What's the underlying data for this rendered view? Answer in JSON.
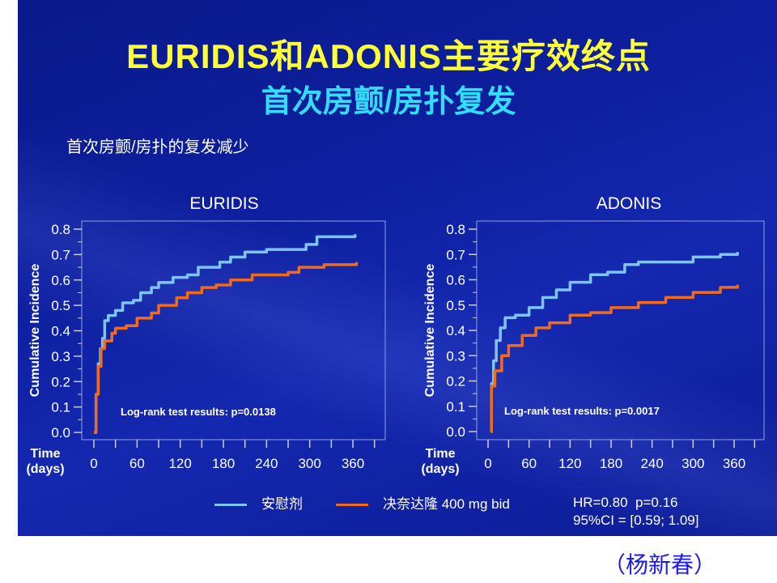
{
  "title": "EURIDIS和ADONIS主要疗效终点",
  "subtitle": "首次房颤/房扑复发",
  "section_text": "首次房颤/房扑的复发减少",
  "legend": [
    {
      "label": "安慰剂",
      "color": "#7fc4f0"
    },
    {
      "label": "决奈达隆 400 mg bid",
      "color": "#f26a1b"
    }
  ],
  "stats": {
    "hr_line": "HR=0.80  p=0.16",
    "ci_line": "95%CI = [0.59; 1.09]"
  },
  "author": "（杨新春）",
  "chart_data": [
    {
      "type": "line",
      "title": "EURIDIS",
      "ylabel": "Cumulative Incidence",
      "xlabel": "Time\n(days)",
      "xlabel_lines": [
        "Time",
        "(days)"
      ],
      "xlim": [
        0,
        390
      ],
      "ylim": [
        0,
        0.8
      ],
      "xticks": [
        0,
        60,
        120,
        180,
        240,
        300,
        360
      ],
      "yticks": [
        "0.0",
        "0.1",
        "0.2",
        "0.3",
        "0.4",
        "0.5",
        "0.6",
        "0.7",
        "0.8"
      ],
      "annotation": "Log-rank test results: p=0.0138",
      "series": [
        {
          "name": "安慰剂",
          "color": "#7fc4f0",
          "x": [
            0,
            3,
            6,
            9,
            12,
            15,
            20,
            30,
            40,
            55,
            65,
            80,
            90,
            110,
            130,
            145,
            175,
            190,
            210,
            240,
            270,
            295,
            310,
            355,
            363
          ],
          "y": [
            0,
            0.15,
            0.27,
            0.33,
            0.37,
            0.44,
            0.46,
            0.48,
            0.51,
            0.52,
            0.55,
            0.57,
            0.59,
            0.61,
            0.62,
            0.65,
            0.67,
            0.69,
            0.71,
            0.72,
            0.72,
            0.74,
            0.77,
            0.77,
            0.78
          ]
        },
        {
          "name": "决奈达隆 400 mg bid",
          "color": "#f26a1b",
          "x": [
            0,
            3,
            6,
            10,
            15,
            25,
            30,
            45,
            60,
            80,
            90,
            115,
            130,
            150,
            170,
            190,
            220,
            270,
            285,
            320,
            365
          ],
          "y": [
            0,
            0.15,
            0.26,
            0.33,
            0.36,
            0.39,
            0.41,
            0.42,
            0.45,
            0.47,
            0.5,
            0.53,
            0.55,
            0.57,
            0.58,
            0.6,
            0.62,
            0.63,
            0.65,
            0.66,
            0.67
          ]
        }
      ]
    },
    {
      "type": "line",
      "title": "ADONIS",
      "ylabel": "Cumulative Incidence",
      "xlabel": "Time\n(days)",
      "xlabel_lines": [
        "Time",
        "(days)"
      ],
      "xlim": [
        0,
        390
      ],
      "ylim": [
        0,
        0.8
      ],
      "xticks": [
        0,
        60,
        120,
        180,
        240,
        300,
        360
      ],
      "yticks": [
        "0.0",
        "0.1",
        "0.2",
        "0.3",
        "0.4",
        "0.5",
        "0.6",
        "0.7",
        "0.8"
      ],
      "annotation": "Log-rank test results: p=0.0017",
      "series": [
        {
          "name": "安慰剂",
          "color": "#7fc4f0",
          "x": [
            4,
            5,
            8,
            12,
            18,
            25,
            40,
            60,
            80,
            100,
            120,
            150,
            175,
            200,
            220,
            280,
            300,
            340,
            365
          ],
          "y": [
            0,
            0.19,
            0.28,
            0.36,
            0.41,
            0.45,
            0.46,
            0.49,
            0.53,
            0.56,
            0.59,
            0.62,
            0.63,
            0.66,
            0.67,
            0.67,
            0.69,
            0.7,
            0.71
          ]
        },
        {
          "name": "决奈达隆 400 mg bid",
          "color": "#f26a1b",
          "x": [
            4,
            5,
            10,
            20,
            30,
            50,
            70,
            90,
            120,
            150,
            180,
            220,
            260,
            300,
            340,
            365
          ],
          "y": [
            0,
            0.18,
            0.24,
            0.3,
            0.34,
            0.38,
            0.41,
            0.43,
            0.46,
            0.47,
            0.49,
            0.51,
            0.53,
            0.55,
            0.57,
            0.58
          ]
        }
      ]
    }
  ]
}
